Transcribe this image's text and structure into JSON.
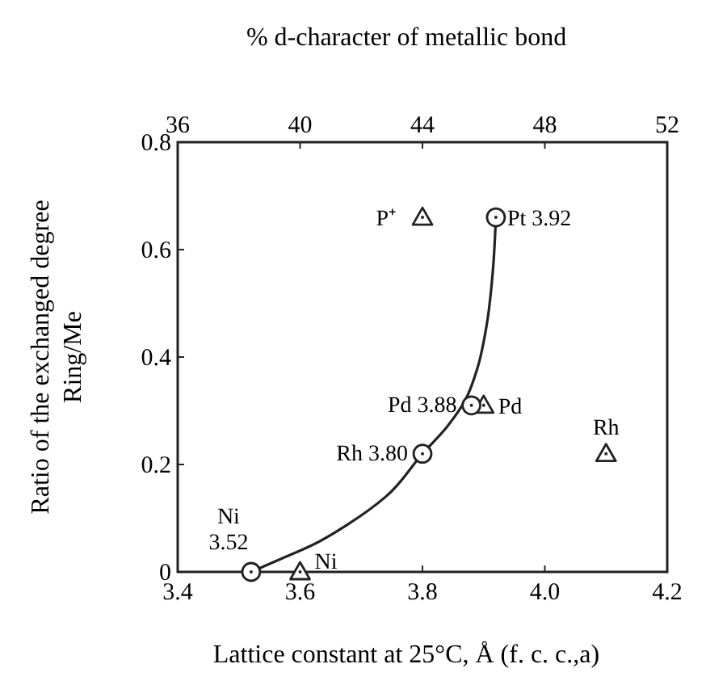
{
  "chart_data": {
    "type": "scatter",
    "x2label": "% d-character of metallic bond",
    "xlabel": "Lattice constant at 25°C, Å (f. c. c.,a)",
    "ylabel": "Ratio of the exchanged degree\nRing/Me",
    "xlim": [
      3.4,
      4.2
    ],
    "xticks": [
      3.4,
      3.6,
      3.8,
      {
        "value": 4.0,
        "label": "4.0"
      },
      4.2
    ],
    "x2lim": [
      36,
      52
    ],
    "x2ticks": [
      36,
      40,
      44,
      48,
      52
    ],
    "ylim": [
      0,
      0.8
    ],
    "yticks": [
      0,
      0.2,
      0.4,
      0.6,
      0.8
    ],
    "grid": false,
    "series": [
      {
        "marker": "circle",
        "color": "#222222",
        "x": [
          3.52,
          3.8,
          3.88,
          3.92
        ],
        "values": [
          0,
          0.22,
          0.31,
          0.66
        ]
      },
      {
        "marker": "triangle",
        "axis": "x2",
        "color": "#222222",
        "x": [
          40,
          44,
          46,
          50
        ],
        "values": [
          0,
          0.66,
          0.31,
          0.22
        ]
      },
      {
        "type": "line",
        "marker": "none",
        "line_style": "solid",
        "color": "#222222",
        "x": [
          3.52,
          3.56,
          3.62,
          3.68,
          3.74,
          3.8,
          3.84,
          3.87,
          3.89,
          3.905,
          3.915,
          3.92
        ],
        "values": [
          0,
          0.02,
          0.05,
          0.09,
          0.14,
          0.22,
          0.27,
          0.32,
          0.38,
          0.46,
          0.56,
          0.66
        ]
      }
    ],
    "annotations": [
      {
        "text": "Ni\n3.52",
        "x": 3.52,
        "y": 0
      },
      {
        "text": "Rh 3.80",
        "x": 3.8,
        "y": 0.22
      },
      {
        "text": "Pd 3.88",
        "x": 3.88,
        "y": 0.31
      },
      {
        "text": "Pt 3.92",
        "x": 3.92,
        "y": 0.66
      },
      {
        "text": "P⁺",
        "x": 3.8,
        "y": 0.66
      },
      {
        "text": "Pd",
        "x": 3.9,
        "y": 0.31
      },
      {
        "text": "Rh",
        "x": 4.1,
        "y": 0.22
      },
      {
        "text": "Ni",
        "x": 3.6,
        "y": 0
      }
    ]
  }
}
